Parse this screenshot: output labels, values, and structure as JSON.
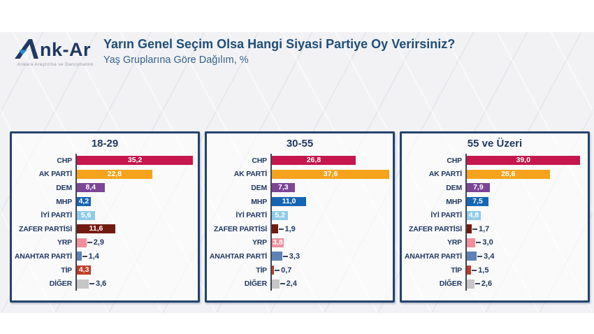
{
  "header": {
    "logo": {
      "text": "Ank-Ar",
      "tagline": "Ankara Araştırma ve Danışmanlık"
    },
    "title": "Yarın Genel Seçim Olsa Hangi Siyasi Partiye Oy Verirsiniz?",
    "subtitle": "Yaş Gruplarına Göre Dağılım, %"
  },
  "chart_data": {
    "type": "bar",
    "orientation": "horizontal",
    "unit": "%",
    "grid": false,
    "legend_position": "none",
    "value_decimal_separator": ",",
    "categories": [
      "CHP",
      "AK PARTİ",
      "DEM",
      "MHP",
      "İYİ PARTİ",
      "ZAFER PARTİSİ",
      "YRP",
      "ANAHTAR PARTİ",
      "TİP",
      "DİĞER"
    ],
    "colors": [
      "#C5164E",
      "#F5A31C",
      "#7C4596",
      "#1565B4",
      "#8FCBE8",
      "#731A10",
      "#F28E9B",
      "#5E82B8",
      "#C23B28",
      "#C6C6C6"
    ],
    "panels": [
      {
        "title": "18-29",
        "values": [
          35.2,
          22.8,
          8.4,
          4.2,
          5.6,
          11.6,
          2.9,
          1.4,
          4.3,
          3.6
        ],
        "xlim": [
          0,
          36
        ],
        "label_inside": [
          true,
          true,
          true,
          true,
          true,
          true,
          false,
          false,
          true,
          false
        ]
      },
      {
        "title": "30-55",
        "values": [
          26.8,
          37.6,
          7.3,
          11.0,
          5.2,
          1.9,
          3.8,
          3.3,
          0.7,
          2.4
        ],
        "xlim": [
          0,
          38
        ],
        "label_inside": [
          true,
          true,
          true,
          true,
          true,
          false,
          true,
          false,
          false,
          false
        ]
      },
      {
        "title": "55 ve Üzeri",
        "values": [
          39.0,
          28.6,
          7.9,
          7.5,
          4.8,
          1.7,
          3.0,
          3.4,
          1.5,
          2.6
        ],
        "xlim": [
          0,
          41
        ],
        "label_inside": [
          true,
          true,
          true,
          true,
          true,
          false,
          false,
          false,
          false,
          false
        ]
      }
    ]
  },
  "style_colors": {
    "title": "#1F4E79",
    "subtitle": "#35618f",
    "panel_border": "#24436d",
    "label_text": "#203864",
    "logo_navy": "#1F3864",
    "logo_teal": "#2C8FD0"
  }
}
